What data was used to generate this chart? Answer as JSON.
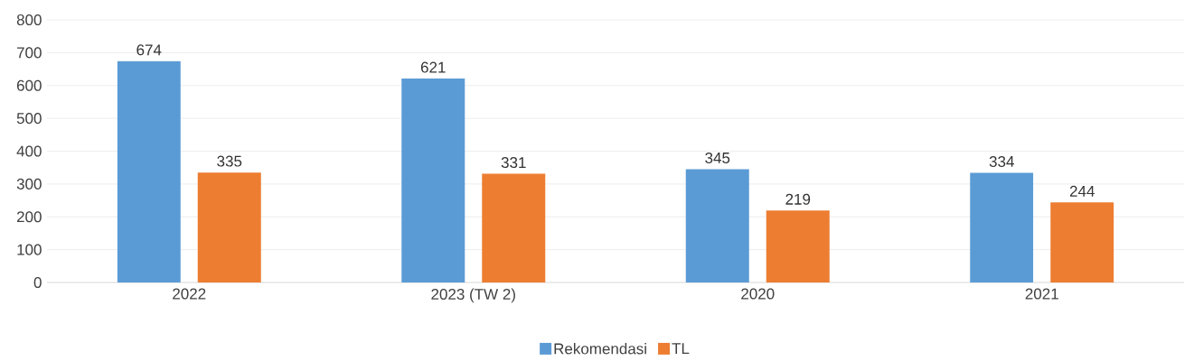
{
  "chart_data": {
    "type": "bar",
    "categories": [
      "2022",
      "2023 (TW 2)",
      "2020",
      "2021"
    ],
    "series": [
      {
        "name": "Rekomendasi",
        "color": "#5b9bd5",
        "values": [
          674,
          621,
          345,
          334
        ]
      },
      {
        "name": "TL",
        "color": "#ed7d31",
        "values": [
          335,
          331,
          219,
          244
        ]
      }
    ],
    "ylim": [
      0,
      800
    ],
    "yticks": [
      0,
      100,
      200,
      300,
      400,
      500,
      600,
      700,
      800
    ],
    "grid": "y",
    "legend": "bottom",
    "data_labels": true
  }
}
